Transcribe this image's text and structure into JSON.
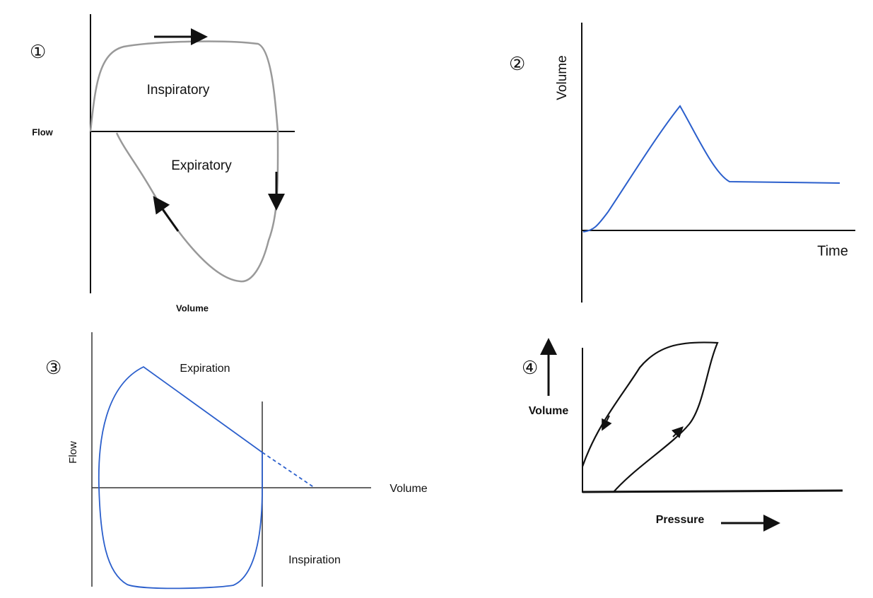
{
  "panels": [
    {
      "number": "①",
      "inner_top": "Inspiratory",
      "inner_bottom": "Expiratory",
      "y_label": "Flow",
      "x_label": "Volume"
    },
    {
      "number": "②",
      "y_label": "Volume",
      "x_label": "Time"
    },
    {
      "number": "③",
      "top_label": "Expiration",
      "y_label": "Flow",
      "x_label": "Volume",
      "bottom_label": "Inspiration"
    },
    {
      "number": "④",
      "y_label": "Volume",
      "x_label": "Pressure"
    }
  ]
}
